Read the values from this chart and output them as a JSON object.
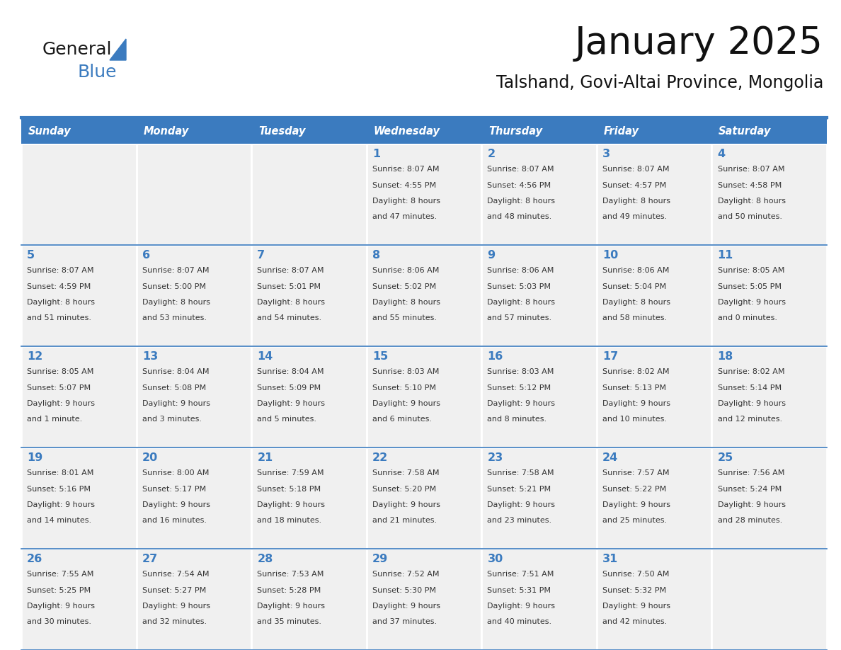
{
  "title": "January 2025",
  "subtitle": "Talshand, Govi-Altai Province, Mongolia",
  "header_bg_color": "#3B7BBF",
  "header_text_color": "#FFFFFF",
  "cell_bg_color": "#F0F0F0",
  "day_number_color": "#3B7BBF",
  "text_color": "#333333",
  "line_color": "#3B7BBF",
  "days_of_week": [
    "Sunday",
    "Monday",
    "Tuesday",
    "Wednesday",
    "Thursday",
    "Friday",
    "Saturday"
  ],
  "weeks": [
    [
      {
        "day": "",
        "info": ""
      },
      {
        "day": "",
        "info": ""
      },
      {
        "day": "",
        "info": ""
      },
      {
        "day": "1",
        "info": "Sunrise: 8:07 AM\nSunset: 4:55 PM\nDaylight: 8 hours\nand 47 minutes."
      },
      {
        "day": "2",
        "info": "Sunrise: 8:07 AM\nSunset: 4:56 PM\nDaylight: 8 hours\nand 48 minutes."
      },
      {
        "day": "3",
        "info": "Sunrise: 8:07 AM\nSunset: 4:57 PM\nDaylight: 8 hours\nand 49 minutes."
      },
      {
        "day": "4",
        "info": "Sunrise: 8:07 AM\nSunset: 4:58 PM\nDaylight: 8 hours\nand 50 minutes."
      }
    ],
    [
      {
        "day": "5",
        "info": "Sunrise: 8:07 AM\nSunset: 4:59 PM\nDaylight: 8 hours\nand 51 minutes."
      },
      {
        "day": "6",
        "info": "Sunrise: 8:07 AM\nSunset: 5:00 PM\nDaylight: 8 hours\nand 53 minutes."
      },
      {
        "day": "7",
        "info": "Sunrise: 8:07 AM\nSunset: 5:01 PM\nDaylight: 8 hours\nand 54 minutes."
      },
      {
        "day": "8",
        "info": "Sunrise: 8:06 AM\nSunset: 5:02 PM\nDaylight: 8 hours\nand 55 minutes."
      },
      {
        "day": "9",
        "info": "Sunrise: 8:06 AM\nSunset: 5:03 PM\nDaylight: 8 hours\nand 57 minutes."
      },
      {
        "day": "10",
        "info": "Sunrise: 8:06 AM\nSunset: 5:04 PM\nDaylight: 8 hours\nand 58 minutes."
      },
      {
        "day": "11",
        "info": "Sunrise: 8:05 AM\nSunset: 5:05 PM\nDaylight: 9 hours\nand 0 minutes."
      }
    ],
    [
      {
        "day": "12",
        "info": "Sunrise: 8:05 AM\nSunset: 5:07 PM\nDaylight: 9 hours\nand 1 minute."
      },
      {
        "day": "13",
        "info": "Sunrise: 8:04 AM\nSunset: 5:08 PM\nDaylight: 9 hours\nand 3 minutes."
      },
      {
        "day": "14",
        "info": "Sunrise: 8:04 AM\nSunset: 5:09 PM\nDaylight: 9 hours\nand 5 minutes."
      },
      {
        "day": "15",
        "info": "Sunrise: 8:03 AM\nSunset: 5:10 PM\nDaylight: 9 hours\nand 6 minutes."
      },
      {
        "day": "16",
        "info": "Sunrise: 8:03 AM\nSunset: 5:12 PM\nDaylight: 9 hours\nand 8 minutes."
      },
      {
        "day": "17",
        "info": "Sunrise: 8:02 AM\nSunset: 5:13 PM\nDaylight: 9 hours\nand 10 minutes."
      },
      {
        "day": "18",
        "info": "Sunrise: 8:02 AM\nSunset: 5:14 PM\nDaylight: 9 hours\nand 12 minutes."
      }
    ],
    [
      {
        "day": "19",
        "info": "Sunrise: 8:01 AM\nSunset: 5:16 PM\nDaylight: 9 hours\nand 14 minutes."
      },
      {
        "day": "20",
        "info": "Sunrise: 8:00 AM\nSunset: 5:17 PM\nDaylight: 9 hours\nand 16 minutes."
      },
      {
        "day": "21",
        "info": "Sunrise: 7:59 AM\nSunset: 5:18 PM\nDaylight: 9 hours\nand 18 minutes."
      },
      {
        "day": "22",
        "info": "Sunrise: 7:58 AM\nSunset: 5:20 PM\nDaylight: 9 hours\nand 21 minutes."
      },
      {
        "day": "23",
        "info": "Sunrise: 7:58 AM\nSunset: 5:21 PM\nDaylight: 9 hours\nand 23 minutes."
      },
      {
        "day": "24",
        "info": "Sunrise: 7:57 AM\nSunset: 5:22 PM\nDaylight: 9 hours\nand 25 minutes."
      },
      {
        "day": "25",
        "info": "Sunrise: 7:56 AM\nSunset: 5:24 PM\nDaylight: 9 hours\nand 28 minutes."
      }
    ],
    [
      {
        "day": "26",
        "info": "Sunrise: 7:55 AM\nSunset: 5:25 PM\nDaylight: 9 hours\nand 30 minutes."
      },
      {
        "day": "27",
        "info": "Sunrise: 7:54 AM\nSunset: 5:27 PM\nDaylight: 9 hours\nand 32 minutes."
      },
      {
        "day": "28",
        "info": "Sunrise: 7:53 AM\nSunset: 5:28 PM\nDaylight: 9 hours\nand 35 minutes."
      },
      {
        "day": "29",
        "info": "Sunrise: 7:52 AM\nSunset: 5:30 PM\nDaylight: 9 hours\nand 37 minutes."
      },
      {
        "day": "30",
        "info": "Sunrise: 7:51 AM\nSunset: 5:31 PM\nDaylight: 9 hours\nand 40 minutes."
      },
      {
        "day": "31",
        "info": "Sunrise: 7:50 AM\nSunset: 5:32 PM\nDaylight: 9 hours\nand 42 minutes."
      },
      {
        "day": "",
        "info": ""
      }
    ]
  ],
  "logo_general_color": "#1a1a1a",
  "logo_blue_color": "#3B7BBF",
  "figsize": [
    11.88,
    9.18
  ],
  "dpi": 100
}
